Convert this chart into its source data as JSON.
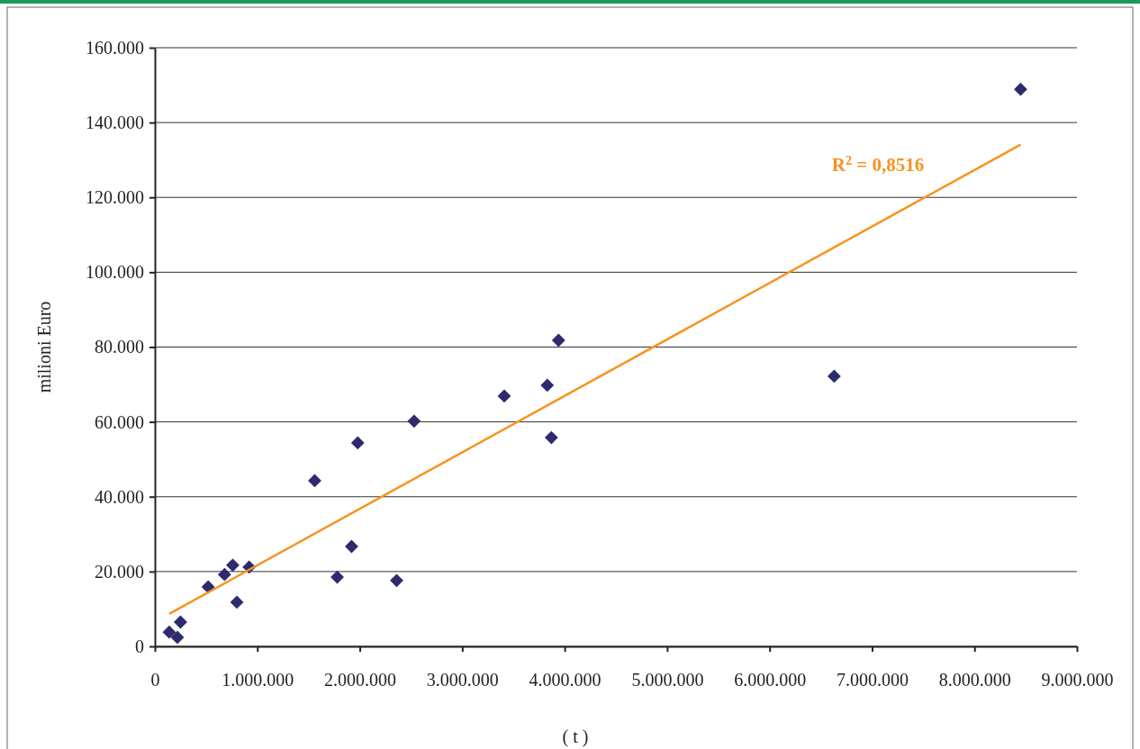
{
  "chart_data": {
    "type": "scatter",
    "ylabel": "milioni Euro",
    "xlabel": "( t )",
    "annotations": [
      "R$^{2}$ = 0,8516"
    ],
    "marker": "diamond",
    "grid": "y",
    "xlim": [
      0,
      9000000
    ],
    "ylim": [
      0,
      160000
    ],
    "xticks": [
      0,
      {
        "value": 1000000,
        "label": "1.000.000"
      },
      {
        "value": 2000000,
        "label": "2.000.000"
      },
      {
        "value": 3000000,
        "label": "3.000.000"
      },
      {
        "value": 4000000,
        "label": "4.000.000"
      },
      {
        "value": 5000000,
        "label": "5.000.000"
      },
      {
        "value": 6000000,
        "label": "6.000.000"
      },
      {
        "value": 7000000,
        "label": "7.000.000"
      },
      {
        "value": 8000000,
        "label": "8.000.000"
      },
      {
        "value": 9000000,
        "label": "9.000.000"
      }
    ],
    "yticks": [
      0,
      {
        "value": 20000,
        "label": "20.000"
      },
      {
        "value": 40000,
        "label": "40.000"
      },
      {
        "value": 60000,
        "label": "60.000"
      },
      {
        "value": 80000,
        "label": "80.000"
      },
      {
        "value": 100000,
        "label": "100.000"
      },
      {
        "value": 120000,
        "label": "120.000"
      },
      {
        "value": 140000,
        "label": "140.000"
      },
      {
        "value": 160000,
        "label": "160.000"
      }
    ],
    "series": [
      {
        "color": "#2e2a6e",
        "x": [
          140000,
          220000,
          250000,
          520000,
          680000,
          760000,
          800000,
          920000,
          1560000,
          1780000,
          1920000,
          1980000,
          2360000,
          2530000,
          3410000,
          3830000,
          3870000,
          3940000,
          6630000,
          8450000
        ],
        "values": [
          3800,
          2400,
          6500,
          15900,
          19200,
          21700,
          11800,
          21200,
          44300,
          18500,
          26700,
          54400,
          17600,
          60200,
          66900,
          69800,
          55800,
          81800,
          72200,
          148900
        ]
      },
      {
        "type": "line",
        "color": "#f7931e",
        "line_style": "solid",
        "marker": "none",
        "x": [
          140000,
          8450000
        ],
        "values": [
          8700,
          134100
        ]
      }
    ]
  }
}
